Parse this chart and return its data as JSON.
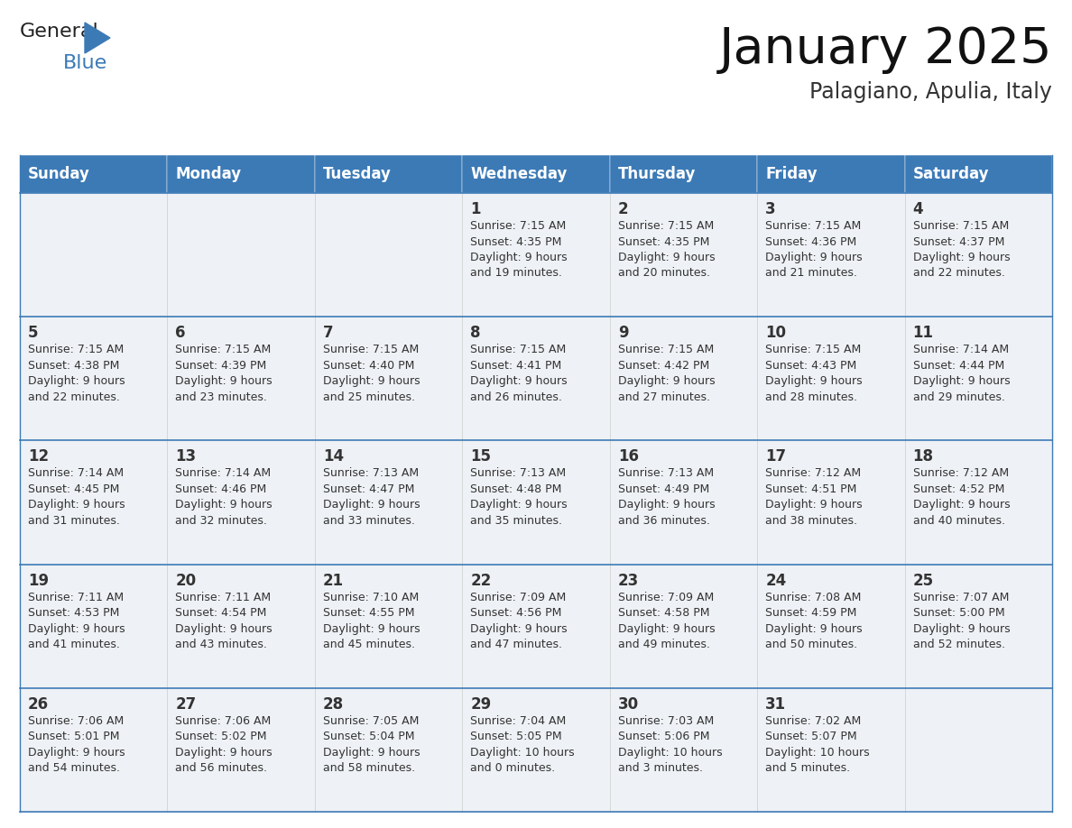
{
  "title": "January 2025",
  "subtitle": "Palagiano, Apulia, Italy",
  "header_bg": "#3c7ab6",
  "header_text_color": "#ffffff",
  "cell_bg": "#eef1f5",
  "border_color": "#3c7ab6",
  "text_color": "#333333",
  "day_headers": [
    "Sunday",
    "Monday",
    "Tuesday",
    "Wednesday",
    "Thursday",
    "Friday",
    "Saturday"
  ],
  "calendar_data": [
    [
      {
        "day": "",
        "info": ""
      },
      {
        "day": "",
        "info": ""
      },
      {
        "day": "",
        "info": ""
      },
      {
        "day": "1",
        "info": "Sunrise: 7:15 AM\nSunset: 4:35 PM\nDaylight: 9 hours\nand 19 minutes."
      },
      {
        "day": "2",
        "info": "Sunrise: 7:15 AM\nSunset: 4:35 PM\nDaylight: 9 hours\nand 20 minutes."
      },
      {
        "day": "3",
        "info": "Sunrise: 7:15 AM\nSunset: 4:36 PM\nDaylight: 9 hours\nand 21 minutes."
      },
      {
        "day": "4",
        "info": "Sunrise: 7:15 AM\nSunset: 4:37 PM\nDaylight: 9 hours\nand 22 minutes."
      }
    ],
    [
      {
        "day": "5",
        "info": "Sunrise: 7:15 AM\nSunset: 4:38 PM\nDaylight: 9 hours\nand 22 minutes."
      },
      {
        "day": "6",
        "info": "Sunrise: 7:15 AM\nSunset: 4:39 PM\nDaylight: 9 hours\nand 23 minutes."
      },
      {
        "day": "7",
        "info": "Sunrise: 7:15 AM\nSunset: 4:40 PM\nDaylight: 9 hours\nand 25 minutes."
      },
      {
        "day": "8",
        "info": "Sunrise: 7:15 AM\nSunset: 4:41 PM\nDaylight: 9 hours\nand 26 minutes."
      },
      {
        "day": "9",
        "info": "Sunrise: 7:15 AM\nSunset: 4:42 PM\nDaylight: 9 hours\nand 27 minutes."
      },
      {
        "day": "10",
        "info": "Sunrise: 7:15 AM\nSunset: 4:43 PM\nDaylight: 9 hours\nand 28 minutes."
      },
      {
        "day": "11",
        "info": "Sunrise: 7:14 AM\nSunset: 4:44 PM\nDaylight: 9 hours\nand 29 minutes."
      }
    ],
    [
      {
        "day": "12",
        "info": "Sunrise: 7:14 AM\nSunset: 4:45 PM\nDaylight: 9 hours\nand 31 minutes."
      },
      {
        "day": "13",
        "info": "Sunrise: 7:14 AM\nSunset: 4:46 PM\nDaylight: 9 hours\nand 32 minutes."
      },
      {
        "day": "14",
        "info": "Sunrise: 7:13 AM\nSunset: 4:47 PM\nDaylight: 9 hours\nand 33 minutes."
      },
      {
        "day": "15",
        "info": "Sunrise: 7:13 AM\nSunset: 4:48 PM\nDaylight: 9 hours\nand 35 minutes."
      },
      {
        "day": "16",
        "info": "Sunrise: 7:13 AM\nSunset: 4:49 PM\nDaylight: 9 hours\nand 36 minutes."
      },
      {
        "day": "17",
        "info": "Sunrise: 7:12 AM\nSunset: 4:51 PM\nDaylight: 9 hours\nand 38 minutes."
      },
      {
        "day": "18",
        "info": "Sunrise: 7:12 AM\nSunset: 4:52 PM\nDaylight: 9 hours\nand 40 minutes."
      }
    ],
    [
      {
        "day": "19",
        "info": "Sunrise: 7:11 AM\nSunset: 4:53 PM\nDaylight: 9 hours\nand 41 minutes."
      },
      {
        "day": "20",
        "info": "Sunrise: 7:11 AM\nSunset: 4:54 PM\nDaylight: 9 hours\nand 43 minutes."
      },
      {
        "day": "21",
        "info": "Sunrise: 7:10 AM\nSunset: 4:55 PM\nDaylight: 9 hours\nand 45 minutes."
      },
      {
        "day": "22",
        "info": "Sunrise: 7:09 AM\nSunset: 4:56 PM\nDaylight: 9 hours\nand 47 minutes."
      },
      {
        "day": "23",
        "info": "Sunrise: 7:09 AM\nSunset: 4:58 PM\nDaylight: 9 hours\nand 49 minutes."
      },
      {
        "day": "24",
        "info": "Sunrise: 7:08 AM\nSunset: 4:59 PM\nDaylight: 9 hours\nand 50 minutes."
      },
      {
        "day": "25",
        "info": "Sunrise: 7:07 AM\nSunset: 5:00 PM\nDaylight: 9 hours\nand 52 minutes."
      }
    ],
    [
      {
        "day": "26",
        "info": "Sunrise: 7:06 AM\nSunset: 5:01 PM\nDaylight: 9 hours\nand 54 minutes."
      },
      {
        "day": "27",
        "info": "Sunrise: 7:06 AM\nSunset: 5:02 PM\nDaylight: 9 hours\nand 56 minutes."
      },
      {
        "day": "28",
        "info": "Sunrise: 7:05 AM\nSunset: 5:04 PM\nDaylight: 9 hours\nand 58 minutes."
      },
      {
        "day": "29",
        "info": "Sunrise: 7:04 AM\nSunset: 5:05 PM\nDaylight: 10 hours\nand 0 minutes."
      },
      {
        "day": "30",
        "info": "Sunrise: 7:03 AM\nSunset: 5:06 PM\nDaylight: 10 hours\nand 3 minutes."
      },
      {
        "day": "31",
        "info": "Sunrise: 7:02 AM\nSunset: 5:07 PM\nDaylight: 10 hours\nand 5 minutes."
      },
      {
        "day": "",
        "info": ""
      }
    ]
  ],
  "title_fontsize": 40,
  "subtitle_fontsize": 17,
  "header_fontsize": 12,
  "day_num_fontsize": 12,
  "info_fontsize": 9,
  "logo_general_fontsize": 16,
  "logo_blue_fontsize": 16
}
